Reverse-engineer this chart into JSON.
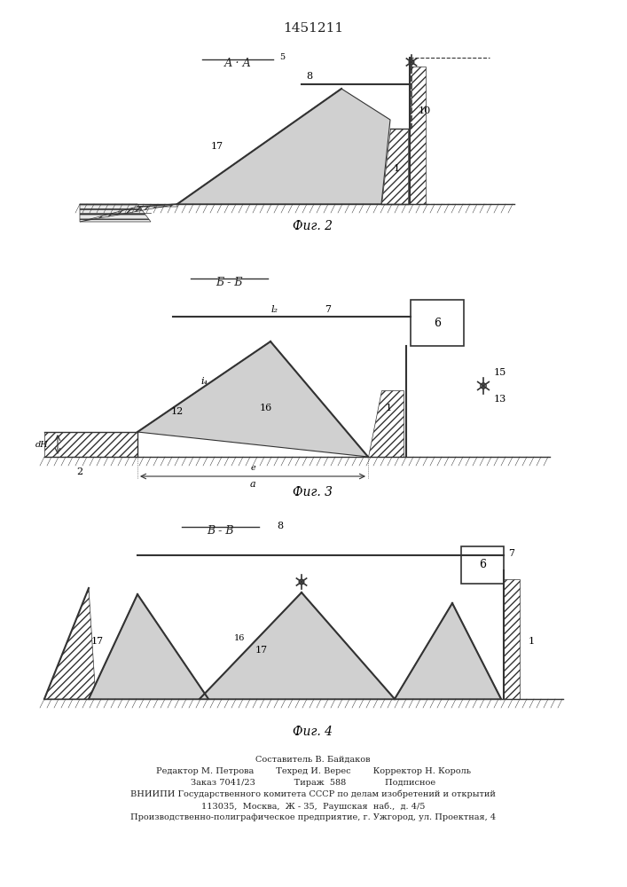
{
  "title": "1451211",
  "bg_color": "#ffffff",
  "fig2_caption": "Фиг. 2",
  "fig3_caption": "Фиг. 3",
  "fig4_caption": "Фиг. 4",
  "footer_lines": [
    "Составитель В. Байдаков",
    "Редактор М. Петрова        Техред И. Верес        Корректор Н. Король",
    "Заказ 7041/23              Тираж  588              Подписное",
    "ВНИИПИ Государственного комитета СССР по делам изобретений и открытий",
    "113035,  Москва,  Ж - 35,  Раушская  наб.,  д. 4/5",
    "Производственно-полиграфическое предприятие, г. Ужгород, ул. Проектная, 4"
  ]
}
